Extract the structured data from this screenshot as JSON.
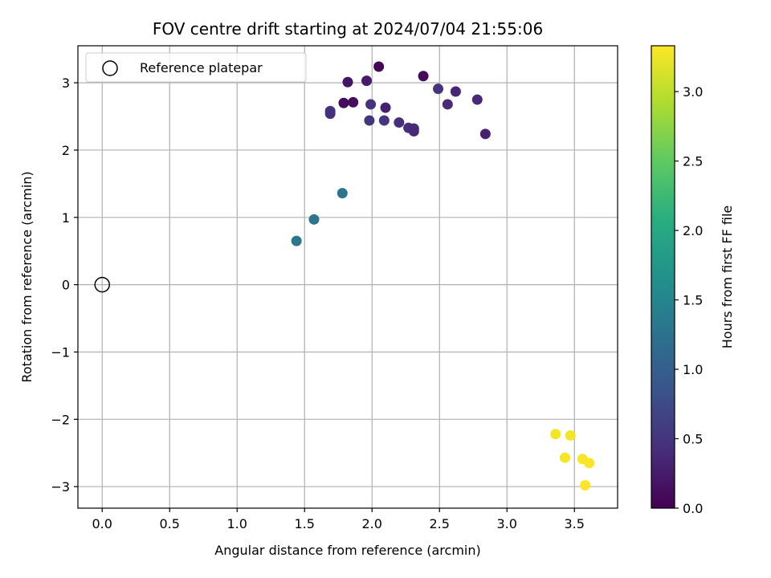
{
  "chart_data": {
    "type": "scatter",
    "title": "FOV centre drift starting at 2024/07/04 21:55:06",
    "xlabel": "Angular distance from reference (arcmin)",
    "ylabel": "Rotation from reference (arcmin)",
    "xlim": [
      -0.18,
      3.82
    ],
    "ylim": [
      -3.32,
      3.55
    ],
    "xticks": [
      0.0,
      0.5,
      1.0,
      1.5,
      2.0,
      2.5,
      3.0,
      3.5
    ],
    "xtick_labels": [
      "0.0",
      "0.5",
      "1.0",
      "1.5",
      "2.0",
      "2.5",
      "3.0",
      "3.5"
    ],
    "yticks": [
      -3,
      -2,
      -1,
      0,
      1,
      2,
      3
    ],
    "ytick_labels": [
      "−3",
      "−2",
      "−1",
      "0",
      "1",
      "2",
      "3"
    ],
    "grid": true,
    "legend": {
      "position": "top-left",
      "entries": [
        "Reference platepar"
      ]
    },
    "reference_point": {
      "x": 0.0,
      "y": 0.0,
      "label": "Reference platepar"
    },
    "colorbar": {
      "label": "Hours from first FF file",
      "colormap": "viridis",
      "range": [
        0.0,
        3.33
      ],
      "ticks": [
        0.0,
        0.5,
        1.0,
        1.5,
        2.0,
        2.5,
        3.0
      ],
      "tick_labels": [
        "0.0",
        "0.5",
        "1.0",
        "1.5",
        "2.0",
        "2.5",
        "3.0"
      ]
    },
    "points": [
      {
        "x": 2.05,
        "y": 3.24,
        "hours": 0.05
      },
      {
        "x": 2.38,
        "y": 3.1,
        "hours": 0.08
      },
      {
        "x": 1.82,
        "y": 3.01,
        "hours": 0.18
      },
      {
        "x": 1.96,
        "y": 3.03,
        "hours": 0.25
      },
      {
        "x": 1.79,
        "y": 2.7,
        "hours": 0.12
      },
      {
        "x": 1.86,
        "y": 2.71,
        "hours": 0.1
      },
      {
        "x": 2.1,
        "y": 2.63,
        "hours": 0.3
      },
      {
        "x": 1.69,
        "y": 2.58,
        "hours": 0.5
      },
      {
        "x": 1.69,
        "y": 2.54,
        "hours": 0.45
      },
      {
        "x": 1.99,
        "y": 2.68,
        "hours": 0.48
      },
      {
        "x": 1.98,
        "y": 2.44,
        "hours": 0.52
      },
      {
        "x": 2.09,
        "y": 2.44,
        "hours": 0.5
      },
      {
        "x": 2.2,
        "y": 2.41,
        "hours": 0.45
      },
      {
        "x": 2.27,
        "y": 2.33,
        "hours": 0.42
      },
      {
        "x": 2.31,
        "y": 2.32,
        "hours": 0.4
      },
      {
        "x": 2.31,
        "y": 2.28,
        "hours": 0.38
      },
      {
        "x": 2.49,
        "y": 2.91,
        "hours": 0.48
      },
      {
        "x": 2.62,
        "y": 2.87,
        "hours": 0.35
      },
      {
        "x": 2.56,
        "y": 2.68,
        "hours": 0.4
      },
      {
        "x": 2.78,
        "y": 2.75,
        "hours": 0.38
      },
      {
        "x": 2.84,
        "y": 2.24,
        "hours": 0.3
      },
      {
        "x": 1.78,
        "y": 1.36,
        "hours": 1.3
      },
      {
        "x": 1.57,
        "y": 0.97,
        "hours": 1.3
      },
      {
        "x": 1.44,
        "y": 0.65,
        "hours": 1.33
      },
      {
        "x": 3.36,
        "y": -2.22,
        "hours": 3.28
      },
      {
        "x": 3.47,
        "y": -2.24,
        "hours": 3.28
      },
      {
        "x": 3.43,
        "y": -2.57,
        "hours": 3.3
      },
      {
        "x": 3.56,
        "y": -2.59,
        "hours": 3.3
      },
      {
        "x": 3.61,
        "y": -2.65,
        "hours": 3.31
      },
      {
        "x": 3.58,
        "y": -2.98,
        "hours": 3.32
      }
    ]
  }
}
